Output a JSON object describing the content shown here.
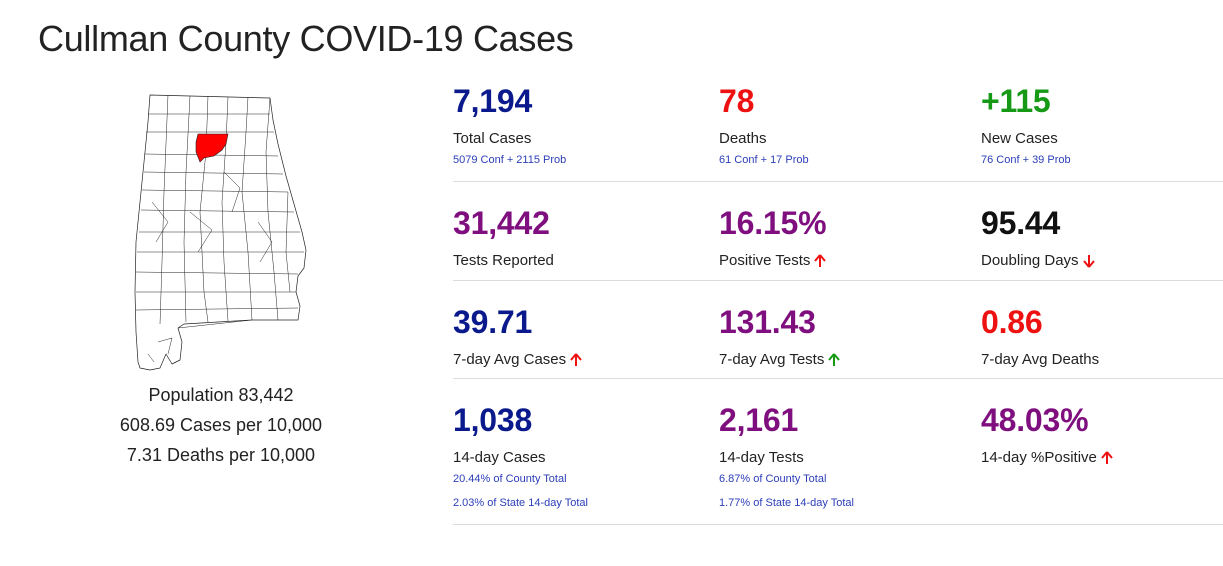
{
  "page": {
    "title": "Cullman County COVID-19 Cases"
  },
  "map": {
    "highlight_county": "Cullman",
    "highlight_color": "#ff0000"
  },
  "population": {
    "population_line": "Population 83,442",
    "cases_per_line": "608.69 Cases per 10,000",
    "deaths_per_line": "7.31 Deaths per 10,000"
  },
  "stats": {
    "total_cases": {
      "value": "7,194",
      "label": "Total Cases",
      "sub": "5079 Conf + 2115 Prob",
      "color": "#0a1a8c"
    },
    "deaths": {
      "value": "78",
      "label": "Deaths",
      "sub": "61 Conf + 17 Prob",
      "color": "#ee1111"
    },
    "new_cases": {
      "value": "+115",
      "label": "New Cases",
      "sub": "76 Conf + 39 Prob",
      "color": "#169a16"
    },
    "tests_reported": {
      "value": "31,442",
      "label": "Tests Reported",
      "color": "#7f0f7f"
    },
    "positive_tests": {
      "value": "16.15%",
      "label": "Positive Tests",
      "trend": "up",
      "trend_color": "#ee1111",
      "color": "#7f0f7f"
    },
    "doubling_days": {
      "value": "95.44",
      "label": "Doubling Days",
      "trend": "down",
      "trend_color": "#ee1111",
      "color": "#111111"
    },
    "avg_cases": {
      "value": "39.71",
      "label": "7-day Avg Cases",
      "trend": "up",
      "trend_color": "#ee1111",
      "color": "#0a1a8c"
    },
    "avg_tests": {
      "value": "131.43",
      "label": "7-day Avg Tests",
      "trend": "up",
      "trend_color": "#169a16",
      "color": "#7f0f7f"
    },
    "avg_deaths": {
      "value": "0.86",
      "label": "7-day Avg Deaths",
      "color": "#ee1111"
    },
    "cases_14": {
      "value": "1,038",
      "label": "14-day Cases",
      "sub": "20.44% of County Total",
      "sub2": "2.03% of State 14-day Total",
      "color": "#0a1a8c"
    },
    "tests_14": {
      "value": "2,161",
      "label": "14-day Tests",
      "sub": "6.87% of County Total",
      "sub2": "1.77% of State 14-day Total",
      "color": "#7f0f7f"
    },
    "positive_14": {
      "value": "48.03%",
      "label": "14-day %Positive",
      "trend": "up",
      "trend_color": "#ee1111",
      "color": "#7f0f7f"
    }
  }
}
